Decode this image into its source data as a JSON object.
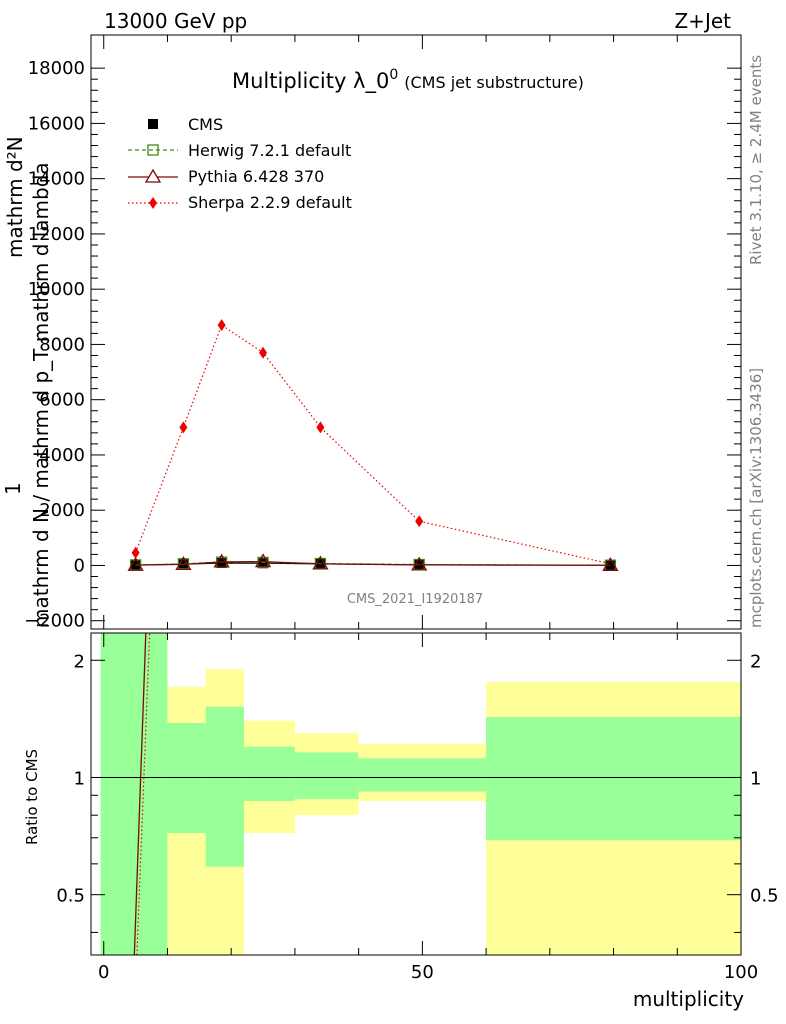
{
  "header": {
    "left": "13000 GeV pp",
    "right": "Z+Jet"
  },
  "title": {
    "main": "Multiplicity λ_0",
    "sup": "0",
    "sub": "(CMS jet substructure)"
  },
  "side_labels": {
    "rivet": "Rivet 3.1.10, ≥ 2.4M events",
    "mcplots": "mcplots.cern.ch [arXiv:1306.3436]"
  },
  "watermark": "CMS_2021_I1920187",
  "top_ylabel": {
    "line1": "mathrm d²N",
    "line2": "mathrm d N / mathrm d p_T mathrm d lambda",
    "line3": "1"
  },
  "legend": [
    {
      "label": "CMS",
      "color": "#000000"
    },
    {
      "label": "Herwig 7.2.1 default",
      "color": "#3a8a1a"
    },
    {
      "label": "Pythia 6.428 370",
      "color": "#7a0a0a"
    },
    {
      "label": "Sherpa 2.2.9 default",
      "color": "#ee0000"
    }
  ],
  "chart_data": [
    {
      "type": "line",
      "xlim": [
        -2,
        100
      ],
      "ylim": [
        -2300,
        19200
      ],
      "yticks": [
        -2000,
        0,
        2000,
        4000,
        6000,
        8000,
        10000,
        12000,
        14000,
        16000,
        18000
      ],
      "ytick_labels": [
        "−2000",
        "0",
        "2000",
        "4000",
        "6000",
        "8000",
        "10000",
        "12000",
        "14000",
        "16000",
        "18000"
      ],
      "x": [
        5,
        12.5,
        18.5,
        25,
        34,
        49.5,
        79.5
      ],
      "series": [
        {
          "name": "CMS",
          "values": [
            15,
            45,
            90,
            80,
            55,
            25,
            8
          ]
        },
        {
          "name": "Herwig 7.2.1 default",
          "values": [
            20,
            60,
            120,
            110,
            70,
            35,
            10
          ]
        },
        {
          "name": "Pythia 6.428 370",
          "values": [
            10,
            40,
            130,
            140,
            60,
            20,
            5
          ]
        },
        {
          "name": "Sherpa 2.2.9 default",
          "values": [
            460,
            5000,
            8700,
            7700,
            5000,
            1600,
            60
          ]
        }
      ]
    },
    {
      "type": "area",
      "xlabel": "multiplicity",
      "ylabel": "Ratio to CMS",
      "xlim": [
        -2,
        100
      ],
      "ylim": [
        0.35,
        2.35
      ],
      "xticks": [
        0,
        50,
        100
      ],
      "yticks": [
        0.5,
        1,
        2
      ],
      "bins": [
        {
          "x0": -0.5,
          "x1": 10,
          "yellow": [
            0.35,
            2.35
          ],
          "green": [
            0.35,
            2.35
          ]
        },
        {
          "x0": 10,
          "x1": 16,
          "yellow": [
            0.35,
            1.71
          ],
          "green": [
            0.72,
            1.38
          ]
        },
        {
          "x0": 16,
          "x1": 22,
          "yellow": [
            0.35,
            1.9
          ],
          "green": [
            0.59,
            1.52
          ]
        },
        {
          "x0": 22,
          "x1": 30,
          "yellow": [
            0.72,
            1.4
          ],
          "green": [
            0.87,
            1.2
          ]
        },
        {
          "x0": 30,
          "x1": 40,
          "yellow": [
            0.8,
            1.3
          ],
          "green": [
            0.88,
            1.16
          ]
        },
        {
          "x0": 40,
          "x1": 60,
          "yellow": [
            0.87,
            1.22
          ],
          "green": [
            0.92,
            1.12
          ]
        },
        {
          "x0": 60,
          "x1": 100,
          "yellow": [
            0.35,
            1.76
          ],
          "green": [
            0.69,
            1.43
          ]
        }
      ],
      "pythia_line": {
        "x": [
          4.8,
          6.6
        ],
        "y": [
          0.35,
          2.35
        ]
      },
      "sherpa_line": {
        "x": [
          5.2,
          7.2
        ],
        "y": [
          0.35,
          2.35
        ]
      }
    }
  ]
}
